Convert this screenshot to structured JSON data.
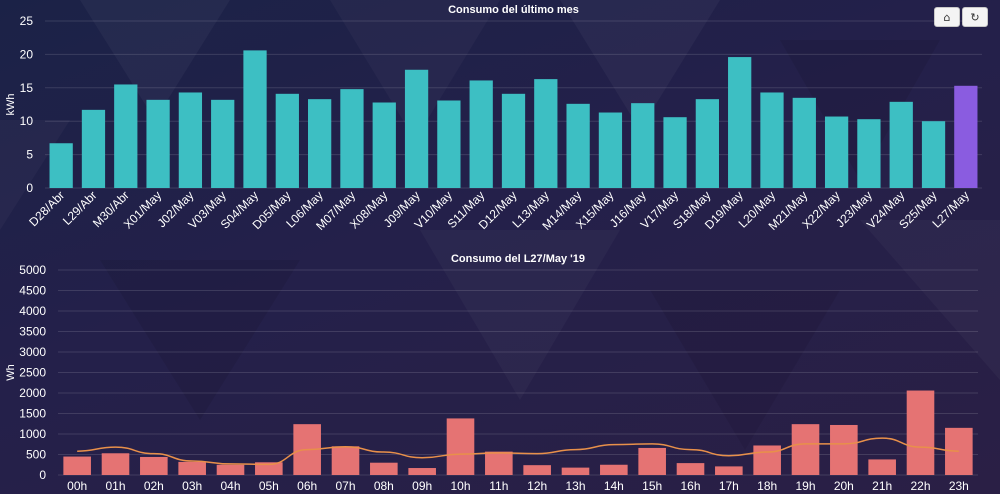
{
  "toolbar": {
    "home_icon": "⌂",
    "refresh_icon": "↻",
    "icons": [
      "home-icon",
      "refresh-icon"
    ]
  },
  "colors": {
    "bar": "#3dbfc3",
    "highlight": "#8a5ce0",
    "hour_bar": "#e57373",
    "trend": "#e8904a",
    "text": "#ffffff"
  },
  "chart_data": [
    {
      "type": "bar",
      "title": "Consumo del último mes",
      "ylabel": "kWh",
      "xlabel": "",
      "ylim": [
        0,
        25
      ],
      "yticks": [
        0,
        5,
        10,
        15,
        20,
        25
      ],
      "grid": true,
      "categories": [
        "D28/Abr",
        "L29/Abr",
        "M30/Abr",
        "X01/May",
        "J02/May",
        "V03/May",
        "S04/May",
        "D05/May",
        "L06/May",
        "M07/May",
        "X08/May",
        "J09/May",
        "V10/May",
        "S11/May",
        "D12/May",
        "L13/May",
        "M14/May",
        "X15/May",
        "J16/May",
        "V17/May",
        "S18/May",
        "D19/May",
        "L20/May",
        "M21/May",
        "X22/May",
        "J23/May",
        "V24/May",
        "S25/May",
        "L27/May"
      ],
      "values": [
        6.7,
        11.7,
        15.5,
        13.2,
        14.3,
        13.2,
        20.6,
        14.1,
        13.3,
        14.8,
        12.8,
        17.7,
        13.1,
        16.1,
        14.1,
        16.3,
        12.6,
        11.3,
        12.7,
        10.6,
        13.3,
        19.6,
        14.3,
        13.5,
        10.7,
        10.3,
        12.9,
        10.0,
        15.3
      ],
      "highlight_index": 28
    },
    {
      "type": "bar",
      "title": "Consumo del L27/May '19",
      "ylabel": "Wh",
      "xlabel": "",
      "ylim": [
        0,
        5000
      ],
      "yticks": [
        0,
        500,
        1000,
        1500,
        2000,
        2500,
        3000,
        3500,
        4000,
        4500,
        5000
      ],
      "grid": true,
      "categories": [
        "00h",
        "01h",
        "02h",
        "03h",
        "04h",
        "05h",
        "06h",
        "07h",
        "08h",
        "09h",
        "10h",
        "11h",
        "12h",
        "13h",
        "14h",
        "15h",
        "16h",
        "17h",
        "18h",
        "19h",
        "20h",
        "21h",
        "22h",
        "23h"
      ],
      "values": [
        450,
        530,
        440,
        320,
        250,
        310,
        1240,
        700,
        300,
        170,
        1380,
        570,
        240,
        180,
        250,
        660,
        290,
        210,
        720,
        1240,
        1220,
        380,
        2060,
        1150
      ],
      "trend": [
        580,
        680,
        520,
        340,
        270,
        260,
        620,
        690,
        560,
        420,
        510,
        540,
        520,
        620,
        740,
        760,
        620,
        470,
        560,
        760,
        760,
        900,
        680,
        580
      ]
    }
  ]
}
